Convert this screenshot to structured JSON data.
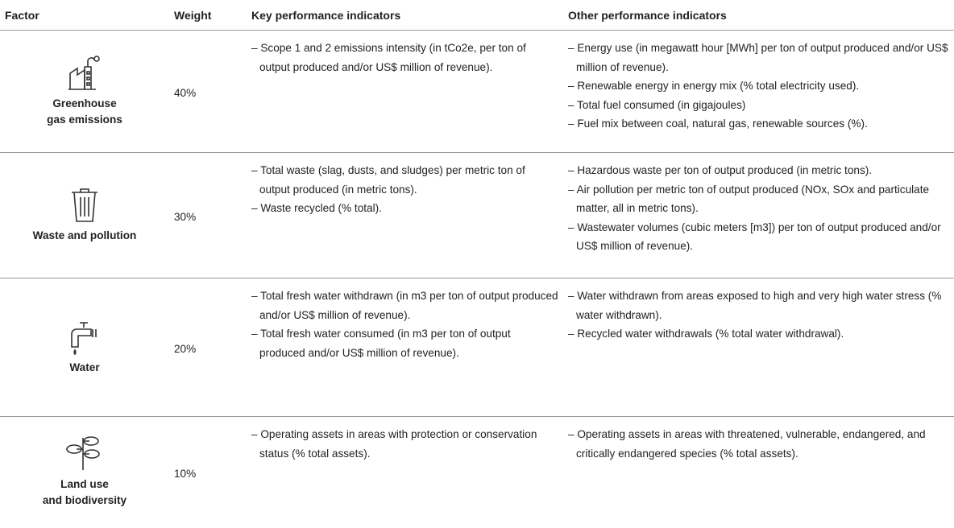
{
  "header": [
    "Factor",
    "Weight",
    "Key performance indicators",
    "Other performance indicators"
  ],
  "rows": [
    {
      "factor": [
        "Greenhouse",
        "gas emissions"
      ],
      "weight": "40%",
      "key": [
        "– Scope 1 and 2 emissions intensity (in tCo2e, per ton of output produced and/or US$ million of revenue)."
      ],
      "other": [
        "– Energy use (in megawatt hour [MWh] per ton of output produced and/or US$ million of revenue).",
        "– Renewable energy in energy mix (% total electricity used).",
        "– Total fuel consumed (in gigajoules)",
        "– Fuel mix between coal, natural gas, renewable sources (%)."
      ]
    },
    {
      "factor": [
        "Waste and pollution"
      ],
      "weight": "30%",
      "key": [
        "– Total waste (slag, dusts, and sludges) per metric ton of output produced (in metric tons).",
        "– Waste recycled (% total)."
      ],
      "other": [
        "– Hazardous waste per ton of output produced (in metric tons).",
        "– Air pollution per metric ton of output produced (NOx, SOx and particulate matter, all in metric tons).",
        "– Wastewater volumes (cubic meters [m3]) per ton of output produced and/or US$ million of revenue)."
      ]
    },
    {
      "factor": [
        "Water"
      ],
      "weight": "20%",
      "key": [
        "– Total fresh water withdrawn (in m3 per ton of output produced and/or US$ million of revenue).",
        "– Total fresh water consumed (in m3 per ton of output produced and/or US$ million of revenue)."
      ],
      "other": [
        "– Water withdrawn from areas exposed to high and very high water stress (% water withdrawn).",
        "– Recycled water withdrawals (% total water withdrawal)."
      ]
    },
    {
      "factor": [
        "Land use",
        "and biodiversity"
      ],
      "weight": "10%",
      "key": [
        "– Operating assets in areas with protection or conservation status (% total assets)."
      ],
      "other": [
        "– Operating assets in areas with threatened, vulnerable, endangered, and critically endangered species  (% total assets)."
      ]
    }
  ]
}
